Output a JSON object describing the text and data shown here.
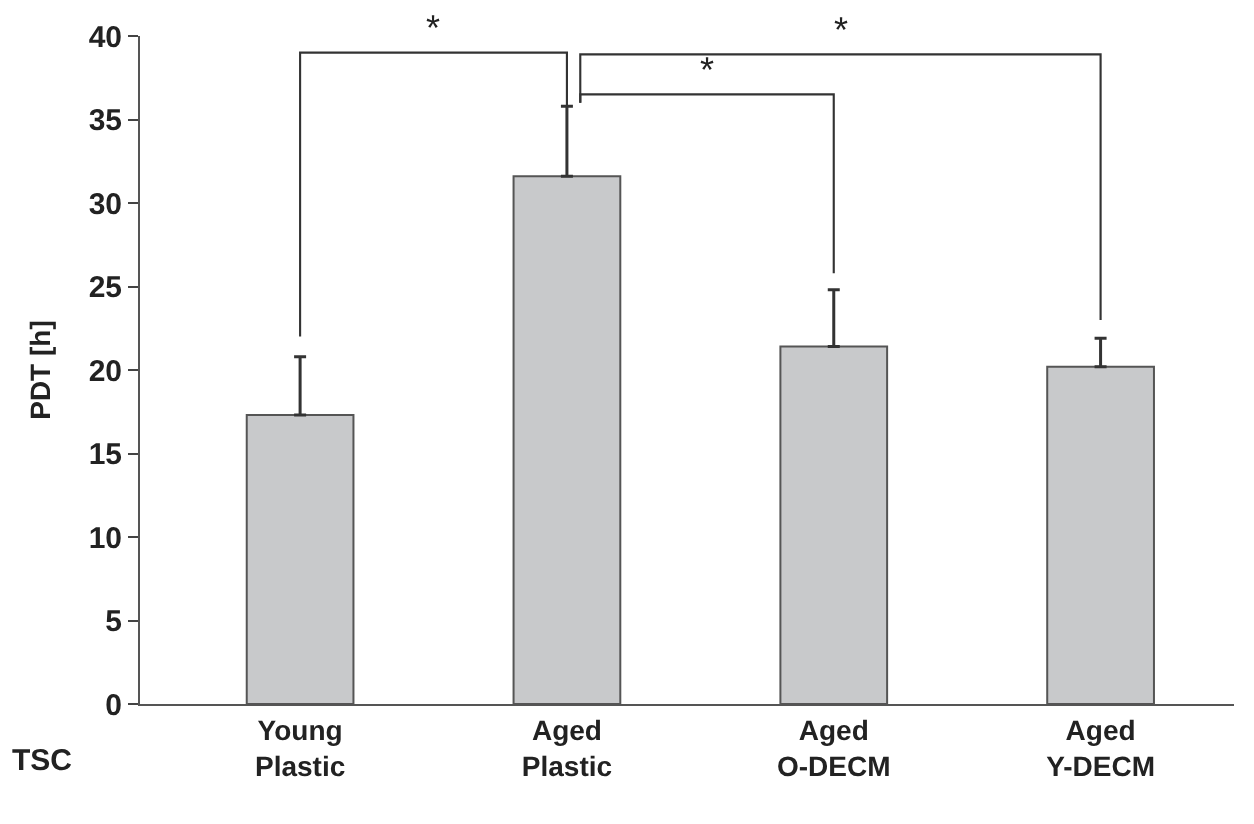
{
  "chart_data": {
    "type": "bar",
    "ylabel": "PDT [h]",
    "xlabel": "TSC",
    "categories": [
      "Young\nPlastic",
      "Aged\nPlastic",
      "Aged\nO-DECM",
      "Aged\nY-DECM"
    ],
    "values": [
      17.3,
      31.6,
      21.4,
      20.2
    ],
    "color": "#c8c9cb",
    "errors": [
      [
        17.3,
        20.8
      ],
      [
        31.6,
        35.8
      ],
      [
        21.4,
        24.8
      ],
      [
        20.2,
        21.9
      ]
    ],
    "ylim": [
      0,
      40
    ],
    "yticks": [
      0,
      5,
      10,
      15,
      20,
      25,
      30,
      35,
      40
    ],
    "annotations": [
      "*",
      "*",
      "*"
    ]
  }
}
